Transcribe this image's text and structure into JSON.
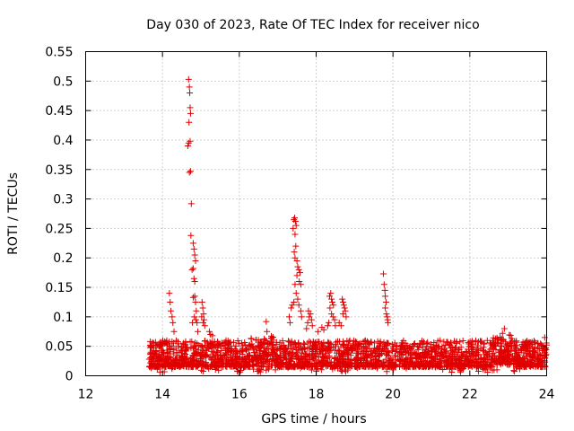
{
  "chart_data": {
    "type": "scatter",
    "title": "Day 030 of 2023, Rate Of TEC Index for receiver nico",
    "xlabel": "GPS time / hours",
    "ylabel": "ROTI / TECUs",
    "xlim": [
      12,
      24
    ],
    "ylim": [
      0,
      0.55
    ],
    "x_ticks": [
      12,
      14,
      16,
      18,
      20,
      22,
      24
    ],
    "x_tick_labels": [
      "12",
      "14",
      "16",
      "18",
      "20",
      "22",
      "24"
    ],
    "y_ticks": [
      0,
      0.05,
      0.1,
      0.15,
      0.2,
      0.25,
      0.3,
      0.35,
      0.4,
      0.45,
      0.5,
      0.55
    ],
    "y_tick_labels": [
      "0",
      "0.05",
      "0.1",
      "0.15",
      "0.2",
      "0.25",
      "0.3",
      "0.35",
      "0.4",
      "0.45",
      "0.5",
      "0.55"
    ],
    "grid": true,
    "marker": "plus",
    "color": "#e00000",
    "baseline": {
      "x_start": 13.65,
      "x_end": 24.0,
      "typical_low": 0.015,
      "typical_high": 0.06,
      "approx_point_count": 2400
    },
    "series": [
      {
        "name": "ROTI",
        "points": [
          [
            14.18,
            0.14
          ],
          [
            14.2,
            0.125
          ],
          [
            14.22,
            0.11
          ],
          [
            14.25,
            0.1
          ],
          [
            14.27,
            0.09
          ],
          [
            14.3,
            0.075
          ],
          [
            14.68,
            0.503
          ],
          [
            14.7,
            0.49
          ],
          [
            14.71,
            0.48
          ],
          [
            14.72,
            0.455
          ],
          [
            14.73,
            0.445
          ],
          [
            14.69,
            0.43
          ],
          [
            14.66,
            0.39
          ],
          [
            14.68,
            0.395
          ],
          [
            14.72,
            0.398
          ],
          [
            14.7,
            0.345
          ],
          [
            14.73,
            0.347
          ],
          [
            14.75,
            0.292
          ],
          [
            14.74,
            0.238
          ],
          [
            14.8,
            0.225
          ],
          [
            14.82,
            0.215
          ],
          [
            14.84,
            0.205
          ],
          [
            14.86,
            0.195
          ],
          [
            14.8,
            0.182
          ],
          [
            14.77,
            0.18
          ],
          [
            14.82,
            0.165
          ],
          [
            14.84,
            0.16
          ],
          [
            14.8,
            0.133
          ],
          [
            14.84,
            0.135
          ],
          [
            14.86,
            0.125
          ],
          [
            14.83,
            0.1
          ],
          [
            14.88,
            0.11
          ],
          [
            14.9,
            0.09
          ],
          [
            14.92,
            0.075
          ],
          [
            14.87,
            0.095
          ],
          [
            14.78,
            0.09
          ],
          [
            15.03,
            0.125
          ],
          [
            15.05,
            0.115
          ],
          [
            15.07,
            0.105
          ],
          [
            15.02,
            0.1
          ],
          [
            15.08,
            0.095
          ],
          [
            15.1,
            0.085
          ],
          [
            15.06,
            0.09
          ],
          [
            15.22,
            0.075
          ],
          [
            15.25,
            0.07
          ],
          [
            15.3,
            0.068
          ],
          [
            16.7,
            0.092
          ],
          [
            16.72,
            0.075
          ],
          [
            17.4,
            0.25
          ],
          [
            17.42,
            0.265
          ],
          [
            17.44,
            0.268
          ],
          [
            17.46,
            0.262
          ],
          [
            17.48,
            0.255
          ],
          [
            17.45,
            0.24
          ],
          [
            17.47,
            0.22
          ],
          [
            17.43,
            0.21
          ],
          [
            17.45,
            0.2
          ],
          [
            17.5,
            0.195
          ],
          [
            17.52,
            0.185
          ],
          [
            17.55,
            0.18
          ],
          [
            17.58,
            0.175
          ],
          [
            17.5,
            0.17
          ],
          [
            17.56,
            0.16
          ],
          [
            17.6,
            0.155
          ],
          [
            17.45,
            0.155
          ],
          [
            17.48,
            0.14
          ],
          [
            17.52,
            0.13
          ],
          [
            17.42,
            0.125
          ],
          [
            17.35,
            0.115
          ],
          [
            17.38,
            0.12
          ],
          [
            17.3,
            0.1
          ],
          [
            17.32,
            0.09
          ],
          [
            17.55,
            0.12
          ],
          [
            17.6,
            0.11
          ],
          [
            17.62,
            0.1
          ],
          [
            17.8,
            0.11
          ],
          [
            17.82,
            0.1
          ],
          [
            17.85,
            0.105
          ],
          [
            17.78,
            0.09
          ],
          [
            17.88,
            0.095
          ],
          [
            17.75,
            0.08
          ],
          [
            17.9,
            0.085
          ],
          [
            18.05,
            0.075
          ],
          [
            18.15,
            0.082
          ],
          [
            18.2,
            0.078
          ],
          [
            18.35,
            0.135
          ],
          [
            18.38,
            0.14
          ],
          [
            18.4,
            0.13
          ],
          [
            18.42,
            0.125
          ],
          [
            18.36,
            0.115
          ],
          [
            18.45,
            0.12
          ],
          [
            18.4,
            0.105
          ],
          [
            18.44,
            0.1
          ],
          [
            18.48,
            0.095
          ],
          [
            18.5,
            0.085
          ],
          [
            18.33,
            0.09
          ],
          [
            18.3,
            0.085
          ],
          [
            18.6,
            0.09
          ],
          [
            18.65,
            0.085
          ],
          [
            18.68,
            0.13
          ],
          [
            18.7,
            0.125
          ],
          [
            18.72,
            0.12
          ],
          [
            18.74,
            0.115
          ],
          [
            18.76,
            0.11
          ],
          [
            18.7,
            0.105
          ],
          [
            18.78,
            0.1
          ],
          [
            19.75,
            0.173
          ],
          [
            19.77,
            0.155
          ],
          [
            19.79,
            0.145
          ],
          [
            19.8,
            0.135
          ],
          [
            19.82,
            0.125
          ],
          [
            19.8,
            0.115
          ],
          [
            19.83,
            0.105
          ],
          [
            19.85,
            0.1
          ],
          [
            19.86,
            0.095
          ],
          [
            19.87,
            0.09
          ],
          [
            22.9,
            0.08
          ],
          [
            22.85,
            0.072
          ],
          [
            23.95,
            0.065
          ]
        ]
      }
    ]
  }
}
